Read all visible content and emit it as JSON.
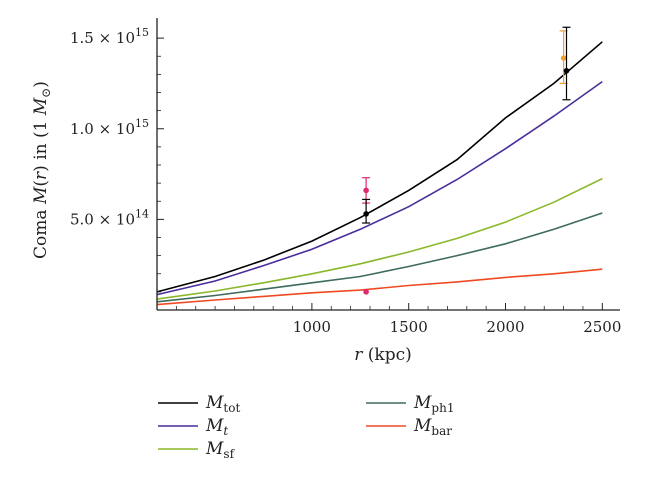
{
  "chart_data": {
    "type": "line",
    "xlabel": "r (kpc)",
    "ylabel": "Coma M(r) in (1 M⊙)",
    "xlim": [
      200,
      2550
    ],
    "ylim": [
      0,
      1600000000000000.0
    ],
    "x_ticks": [
      1000,
      1500,
      2000,
      2500
    ],
    "y_ticks": [
      {
        "value": 500000000000000.0,
        "mantissa": "5.0",
        "exponent": "14"
      },
      {
        "value": 1000000000000000.0,
        "mantissa": "1.0",
        "exponent": "15"
      },
      {
        "value": 1500000000000000.0,
        "mantissa": "1.5",
        "exponent": "15"
      }
    ],
    "series": [
      {
        "name": "M_tot",
        "label_main": "M",
        "label_sub": "tot",
        "color": "#000000",
        "x": [
          200,
          500,
          750,
          1000,
          1250,
          1500,
          1750,
          2000,
          2250,
          2500
        ],
        "y": [
          100000000000000.0,
          185000000000000.0,
          275000000000000.0,
          380000000000000.0,
          510000000000000.0,
          660000000000000.0,
          830000000000000.0,
          1060000000000000.0,
          1250000000000000.0,
          1480000000000000.0
        ]
      },
      {
        "name": "M_t",
        "label_main": "M",
        "label_sub": "t",
        "color": "#4a2c9c",
        "x": [
          200,
          500,
          750,
          1000,
          1250,
          1500,
          1750,
          2000,
          2250,
          2500
        ],
        "y": [
          85000000000000.0,
          160000000000000.0,
          245000000000000.0,
          335000000000000.0,
          445000000000000.0,
          570000000000000.0,
          720000000000000.0,
          890000000000000.0,
          1070000000000000.0,
          1260000000000000.0
        ]
      },
      {
        "name": "M_sf",
        "label_main": "M",
        "label_sub": "sf",
        "color": "#8ab82a",
        "x": [
          200,
          500,
          750,
          1000,
          1250,
          1500,
          1750,
          2000,
          2250,
          2500
        ],
        "y": [
          60000000000000.0,
          105000000000000.0,
          150000000000000.0,
          200000000000000.0,
          255000000000000.0,
          320000000000000.0,
          395000000000000.0,
          485000000000000.0,
          595000000000000.0,
          725000000000000.0
        ]
      },
      {
        "name": "M_ph1",
        "label_main": "M",
        "label_sub": "ph1",
        "color": "#3d6b5c",
        "x": [
          200,
          500,
          750,
          1000,
          1250,
          1500,
          1750,
          2000,
          2250,
          2500
        ],
        "y": [
          45000000000000.0,
          80000000000000.0,
          115000000000000.0,
          150000000000000.0,
          185000000000000.0,
          240000000000000.0,
          300000000000000.0,
          365000000000000.0,
          445000000000000.0,
          535000000000000.0
        ]
      },
      {
        "name": "M_bar",
        "label_main": "M",
        "label_sub": "bar",
        "color": "#f04a22",
        "x": [
          200,
          500,
          750,
          1000,
          1250,
          1500,
          1750,
          2000,
          2250,
          2500
        ],
        "y": [
          30000000000000.0,
          55000000000000.0,
          75000000000000.0,
          95000000000000.0,
          110000000000000.0,
          135000000000000.0,
          155000000000000.0,
          180000000000000.0,
          200000000000000.0,
          225000000000000.0
        ]
      }
    ],
    "points": [
      {
        "x": 1280,
        "y": 660000000000000.0,
        "err_lo": 590000000000000.0,
        "err_hi": 730000000000000.0,
        "color": "#e0286e"
      },
      {
        "x": 1280,
        "y": 530000000000000.0,
        "err_lo": 480000000000000.0,
        "err_hi": 610000000000000.0,
        "color": "#000000"
      },
      {
        "x": 1280,
        "y": 100000000000000.0,
        "color": "#e0286e"
      },
      {
        "x": 2300,
        "y": 1390000000000000.0,
        "err_lo": 1250000000000000.0,
        "err_hi": 1540000000000000.0,
        "color": "#f0a030"
      },
      {
        "x": 2315,
        "y": 1320000000000000.0,
        "err_lo": 1160000000000000.0,
        "err_hi": 1560000000000000.0,
        "color": "#000000"
      }
    ],
    "legend_placement": "bottom",
    "grid": false
  }
}
